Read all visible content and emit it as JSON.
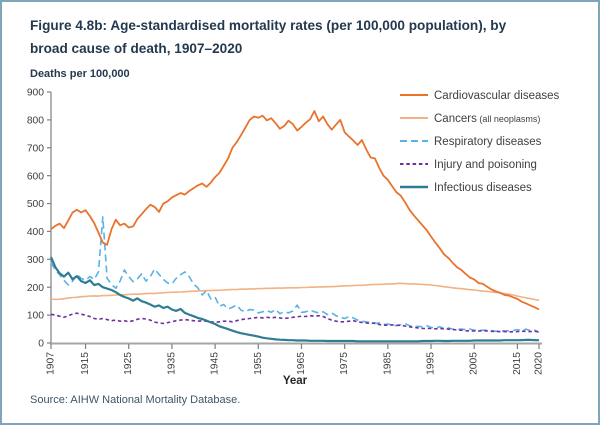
{
  "figure": {
    "title_line1": "Figure 4.8b: Age-standardised mortality rates (per 100,000 population), by",
    "title_line2": "broad cause of death, 1907–2020",
    "source": "Source: AIHW National Mortality Database."
  },
  "colors": {
    "border": "#7EA6B8",
    "title_text": "#24394F",
    "source_text": "#3F5565",
    "axis_text": "#404040",
    "y_axis_line": "#7F7F7F",
    "x_axis_line": "#A6A6A6",
    "cardiovascular": "#E9732D",
    "cancers": "#F4B183",
    "respiratory": "#58B3E4",
    "injury": "#7030A0",
    "infectious": "#2E7D95"
  },
  "chart_data": {
    "type": "line",
    "title": "Age-standardised mortality rates (per 100,000 population), by broad cause of death, 1907-2020",
    "xlabel": "Year",
    "ylabel": "Deaths per 100,000",
    "ylim": [
      0,
      900
    ],
    "y_ticks": [
      0,
      100,
      200,
      300,
      400,
      500,
      600,
      700,
      800,
      900
    ],
    "x_ticks": [
      1907,
      1915,
      1925,
      1935,
      1945,
      1955,
      1965,
      1975,
      1985,
      1995,
      2005,
      2015,
      2020
    ],
    "x_range": [
      1907,
      2020
    ],
    "grid": false,
    "legend_position": "top-right",
    "years_start": 1907,
    "series": [
      {
        "name": "Cancers (all neoplasms)",
        "label_main": "Cancers",
        "label_sub": "(all neoplasms)",
        "color": "#F4B183",
        "style": "solid",
        "width": 1.6,
        "values": [
          158,
          156,
          157,
          159,
          161,
          163,
          164,
          166,
          167,
          168,
          169,
          168,
          170,
          170,
          171,
          172,
          173,
          173,
          174,
          175,
          175,
          176,
          177,
          178,
          178,
          179,
          180,
          181,
          182,
          182,
          183,
          184,
          185,
          186,
          186,
          187,
          188,
          188,
          189,
          189,
          190,
          191,
          192,
          192,
          193,
          193,
          194,
          194,
          195,
          195,
          196,
          196,
          197,
          197,
          197,
          198,
          198,
          198,
          199,
          199,
          200,
          200,
          201,
          201,
          202,
          202,
          203,
          204,
          205,
          205,
          206,
          207,
          207,
          208,
          209,
          210,
          210,
          211,
          212,
          212,
          213,
          214,
          213,
          212,
          212,
          211,
          210,
          209,
          208,
          206,
          204,
          202,
          200,
          198,
          196,
          195,
          193,
          191,
          190,
          188,
          186,
          185,
          183,
          181,
          180,
          177,
          175,
          172,
          168,
          165,
          162,
          159,
          156,
          153
        ]
      },
      {
        "name": "Respiratory diseases",
        "label_main": "Respiratory diseases",
        "label_sub": "",
        "color": "#58B3E4",
        "style": "dashed-long",
        "width": 1.6,
        "values": [
          288,
          262,
          245,
          225,
          208,
          222,
          246,
          232,
          225,
          238,
          228,
          255,
          452,
          232,
          210,
          196,
          222,
          262,
          238,
          220,
          230,
          248,
          222,
          238,
          265,
          246,
          228,
          215,
          212,
          232,
          245,
          255,
          238,
          212,
          198,
          172,
          188,
          158,
          165,
          132,
          138,
          122,
          128,
          136,
          118,
          112,
          120,
          118,
          108,
          112,
          116,
          110,
          120,
          105,
          112,
          108,
          115,
          136,
          110,
          112,
          118,
          112,
          108,
          112,
          102,
          108,
          98,
          92,
          88,
          95,
          90,
          82,
          78,
          76,
          72,
          70,
          72,
          66,
          68,
          64,
          62,
          66,
          70,
          62,
          58,
          60,
          58,
          62,
          56,
          54,
          58,
          52,
          54,
          50,
          48,
          50,
          48,
          50,
          46,
          44,
          46,
          46,
          44,
          42,
          44,
          43,
          44,
          45,
          48,
          44,
          50,
          44,
          46,
          38
        ]
      },
      {
        "name": "Injury and poisoning",
        "label_main": "Injury and poisoning",
        "label_sub": "",
        "color": "#7030A0",
        "style": "dashed-short",
        "width": 1.6,
        "values": [
          103,
          100,
          96,
          92,
          98,
          104,
          107,
          103,
          100,
          95,
          88,
          85,
          88,
          84,
          80,
          82,
          78,
          80,
          76,
          80,
          85,
          88,
          86,
          82,
          75,
          72,
          70,
          73,
          76,
          80,
          82,
          84,
          82,
          80,
          78,
          80,
          78,
          76,
          74,
          76,
          78,
          78,
          76,
          80,
          84,
          86,
          88,
          90,
          92,
          90,
          92,
          90,
          92,
          90,
          88,
          90,
          92,
          94,
          96,
          95,
          98,
          96,
          98,
          95,
          88,
          82,
          78,
          76,
          76,
          78,
          80,
          76,
          74,
          72,
          70,
          72,
          66,
          64,
          64,
          65,
          64,
          63,
          61,
          58,
          56,
          54,
          52,
          52,
          52,
          51,
          52,
          51,
          50,
          48,
          47,
          46,
          44,
          43,
          43,
          43,
          44,
          43,
          42,
          41,
          41,
          41,
          40,
          40,
          41,
          42,
          42,
          41,
          42,
          40
        ]
      },
      {
        "name": "Infectious diseases",
        "label_main": "Infectious diseases",
        "label_sub": "",
        "color": "#2E7D95",
        "style": "solid",
        "width": 2.2,
        "values": [
          308,
          272,
          250,
          238,
          252,
          228,
          240,
          222,
          215,
          225,
          208,
          212,
          200,
          195,
          190,
          182,
          172,
          165,
          160,
          152,
          160,
          150,
          145,
          138,
          130,
          135,
          126,
          130,
          120,
          115,
          122,
          108,
          102,
          96,
          90,
          86,
          80,
          74,
          68,
          60,
          55,
          50,
          44,
          39,
          35,
          32,
          29,
          26,
          23,
          19,
          17,
          15,
          13,
          12,
          11,
          10,
          10,
          9,
          9,
          9,
          8,
          8,
          8,
          8,
          7,
          7,
          7,
          7,
          7,
          7,
          7,
          6,
          6,
          6,
          6,
          6,
          6,
          6,
          6,
          6,
          6,
          6,
          6,
          6,
          6,
          6,
          7,
          7,
          7,
          8,
          8,
          7,
          7,
          8,
          8,
          8,
          8,
          8,
          9,
          9,
          9,
          9,
          9,
          9,
          9,
          10,
          10,
          10,
          10,
          10,
          11,
          11,
          10,
          10
        ]
      },
      {
        "name": "Cardiovascular diseases",
        "label_main": "Cardiovascular diseases",
        "label_sub": "",
        "color": "#E9732D",
        "style": "solid",
        "width": 1.8,
        "values": [
          408,
          420,
          428,
          412,
          440,
          468,
          478,
          468,
          476,
          455,
          430,
          395,
          360,
          352,
          408,
          442,
          422,
          428,
          414,
          418,
          445,
          462,
          480,
          496,
          488,
          470,
          500,
          508,
          522,
          530,
          538,
          532,
          545,
          555,
          565,
          572,
          560,
          575,
          595,
          610,
          635,
          662,
          700,
          720,
          745,
          772,
          800,
          812,
          808,
          815,
          798,
          806,
          788,
          768,
          778,
          797,
          785,
          762,
          775,
          790,
          802,
          832,
          795,
          812,
          785,
          765,
          783,
          800,
          755,
          740,
          726,
          710,
          728,
          694,
          665,
          662,
          628,
          600,
          585,
          562,
          540,
          528,
          505,
          478,
          458,
          440,
          422,
          405,
          382,
          360,
          340,
          318,
          305,
          288,
          272,
          262,
          248,
          235,
          228,
          215,
          212,
          202,
          192,
          185,
          180,
          172,
          170,
          164,
          158,
          148,
          142,
          135,
          128,
          120
        ]
      }
    ],
    "legend_order": [
      "Cardiovascular diseases",
      "Cancers (all neoplasms)",
      "Respiratory diseases",
      "Injury and poisoning",
      "Infectious diseases"
    ]
  }
}
